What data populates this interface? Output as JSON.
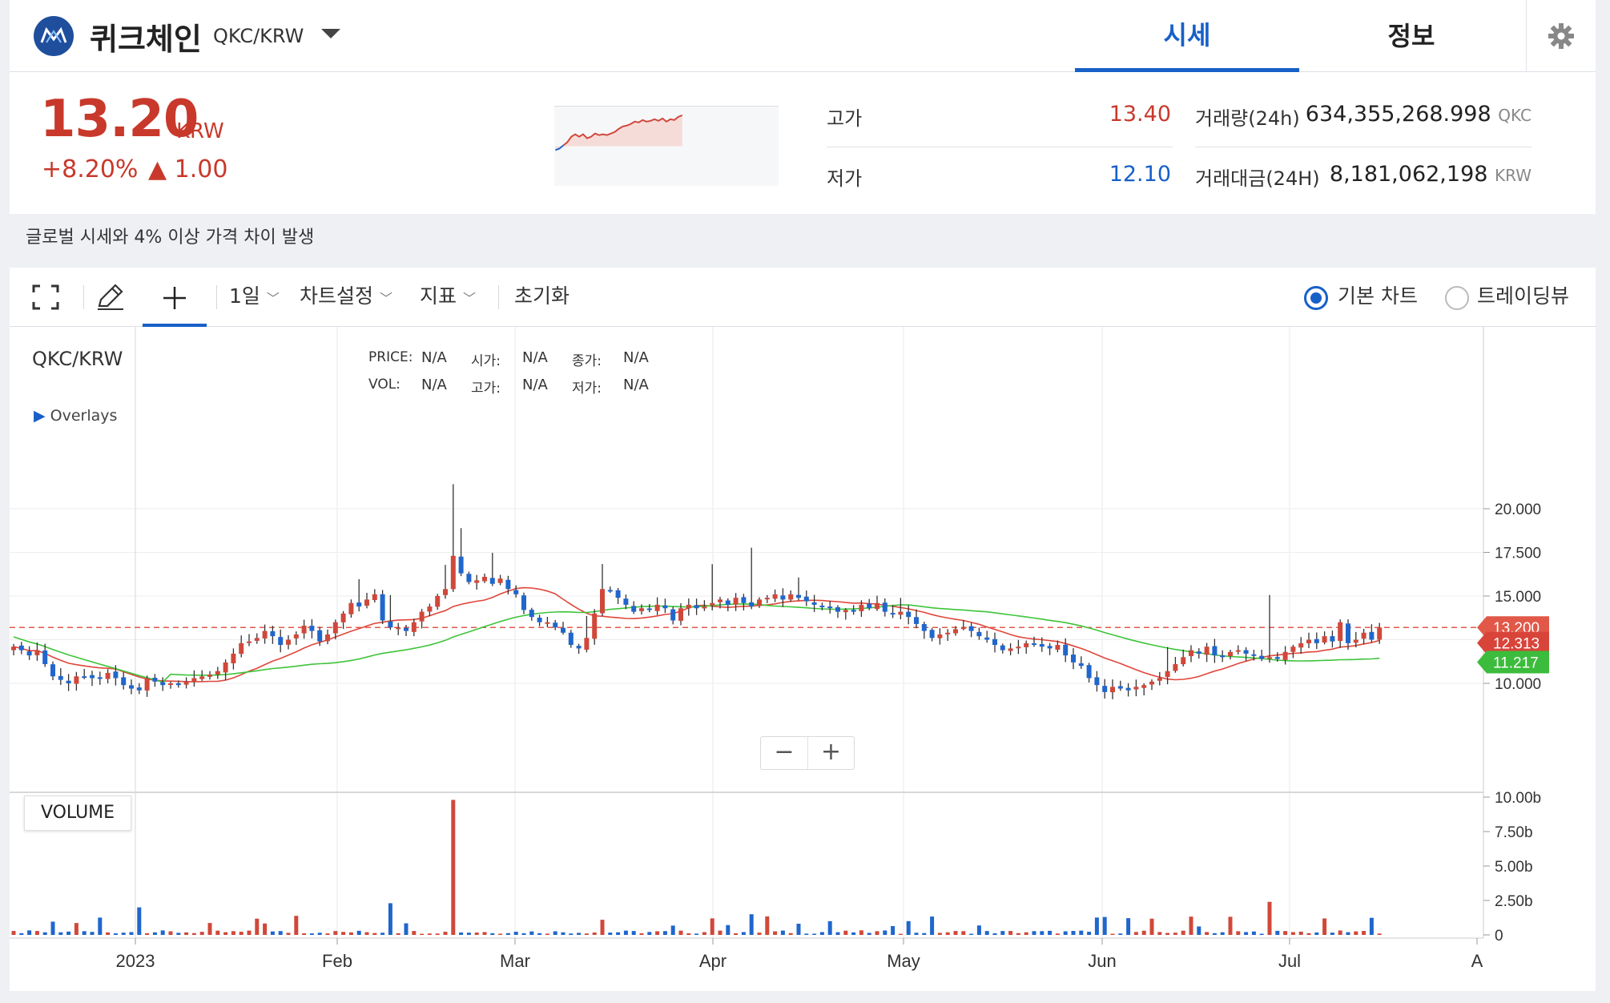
{
  "header": {
    "coin_name": "퀴크체인",
    "pair": "QKC/KRW",
    "tabs": [
      {
        "label": "시세",
        "active": true
      },
      {
        "label": "정보",
        "active": false
      }
    ]
  },
  "ticker": {
    "price": "13.20",
    "unit": "KRW",
    "change_pct": "+8.20%",
    "change_abs": "▲ 1.00",
    "high_label": "고가",
    "high": "13.40",
    "low_label": "저가",
    "low": "12.10",
    "volume_label": "거래량(24h)",
    "volume": "634,355,268.998",
    "volume_unit": "QKC",
    "value_label": "거래대금(24H)",
    "value": "8,181,062,198",
    "value_unit": "KRW"
  },
  "notice": "글로벌 시세와 4% 이상 가격 차이 발생",
  "toolbar": {
    "interval": "1일",
    "chart_settings": "차트설정",
    "indicators": "지표",
    "reset": "초기화",
    "view_basic": "기본 차트",
    "view_tradingview": "트레이딩뷰"
  },
  "chart_overlay": {
    "symbol": "QKC/KRW",
    "overlays": "Overlays",
    "price_label": "PRICE:",
    "price_val": "N/A",
    "vol_label": "VOL:",
    "vol_val": "N/A",
    "open_label": "시가:",
    "open_val": "N/A",
    "high_label": "고가:",
    "high_val": "N/A",
    "close_label": "종가:",
    "close_val": "N/A",
    "low_label": "저가:",
    "low_val": "N/A",
    "volume_title": "VOLUME",
    "zoom_out": "−",
    "zoom_in": "+"
  },
  "colors": {
    "up": "#d0483a",
    "down": "#2066cc",
    "ma_short": "#e0463a",
    "ma_long": "#3ec43a",
    "accent": "#1760c8"
  },
  "chart_data": {
    "type": "candlestick",
    "x_ticks": [
      "2023",
      "Feb",
      "Mar",
      "Apr",
      "May",
      "Jun",
      "Jul",
      "A"
    ],
    "y_ticks": [
      "20.000",
      "17.500",
      "15.000",
      "10.000"
    ],
    "volume_ticks": [
      "10.00b",
      "7.50b",
      "5.00b",
      "2.50b",
      "0"
    ],
    "price_badges": [
      {
        "label": "13.200",
        "value": 13.2,
        "color": "#e25848"
      },
      {
        "label": "12.313",
        "value": 12.313,
        "color": "#d8443a"
      },
      {
        "label": "11.217",
        "value": 11.217,
        "color": "#3cbc3c"
      }
    ],
    "close": [
      12.1,
      11.9,
      11.6,
      11.9,
      11.1,
      10.4,
      10.2,
      10.0,
      10.4,
      10.4,
      10.3,
      10.3,
      10.6,
      10.3,
      9.9,
      9.7,
      9.6,
      10.3,
      10.1,
      9.9,
      10.0,
      9.9,
      10.1,
      10.3,
      10.4,
      10.5,
      10.7,
      11.2,
      11.7,
      12.3,
      12.4,
      12.6,
      13.0,
      12.7,
      12.2,
      12.5,
      12.8,
      13.3,
      13.0,
      12.4,
      12.8,
      13.5,
      14.0,
      14.6,
      14.4,
      14.8,
      15.1,
      13.6,
      13.2,
      13.2,
      13.0,
      13.5,
      14.1,
      14.4,
      15.0,
      15.4,
      17.3,
      16.3,
      15.8,
      15.9,
      16.1,
      15.7,
      16.0,
      15.4,
      15.1,
      14.2,
      13.8,
      13.5,
      13.5,
      13.2,
      12.9,
      12.2,
      12.0,
      12.6,
      14.0,
      15.4,
      15.3,
      14.9,
      14.5,
      14.1,
      14.3,
      14.2,
      14.5,
      14.3,
      13.6,
      14.3,
      14.5,
      14.3,
      14.4,
      14.6,
      14.8,
      14.5,
      14.9,
      14.6,
      14.4,
      14.8,
      14.9,
      15.1,
      14.8,
      15.1,
      14.9,
      14.7,
      14.5,
      14.4,
      14.3,
      14.1,
      14.2,
      14.1,
      14.5,
      14.3,
      14.6,
      14.1,
      14.0,
      14.1,
      13.8,
      13.4,
      13.0,
      12.6,
      12.8,
      12.9,
      13.1,
      13.2,
      13.0,
      12.7,
      12.5,
      12.2,
      11.9,
      12.0,
      12.1,
      12.3,
      12.2,
      12.1,
      12.0,
      12.2,
      11.6,
      11.2,
      11.0,
      10.3,
      9.9,
      9.5,
      9.8,
      9.7,
      9.6,
      9.8,
      9.9,
      10.1,
      10.3,
      10.7,
      11.1,
      11.5,
      11.9,
      11.7,
      12.1,
      11.6,
      11.5,
      11.8,
      11.9,
      11.7,
      11.6,
      11.4,
      11.5,
      11.4,
      11.8,
      12.1,
      12.3,
      12.5,
      12.3,
      12.7,
      12.4,
      13.5,
      12.3,
      12.5,
      12.9,
      12.5,
      13.2
    ]
  }
}
